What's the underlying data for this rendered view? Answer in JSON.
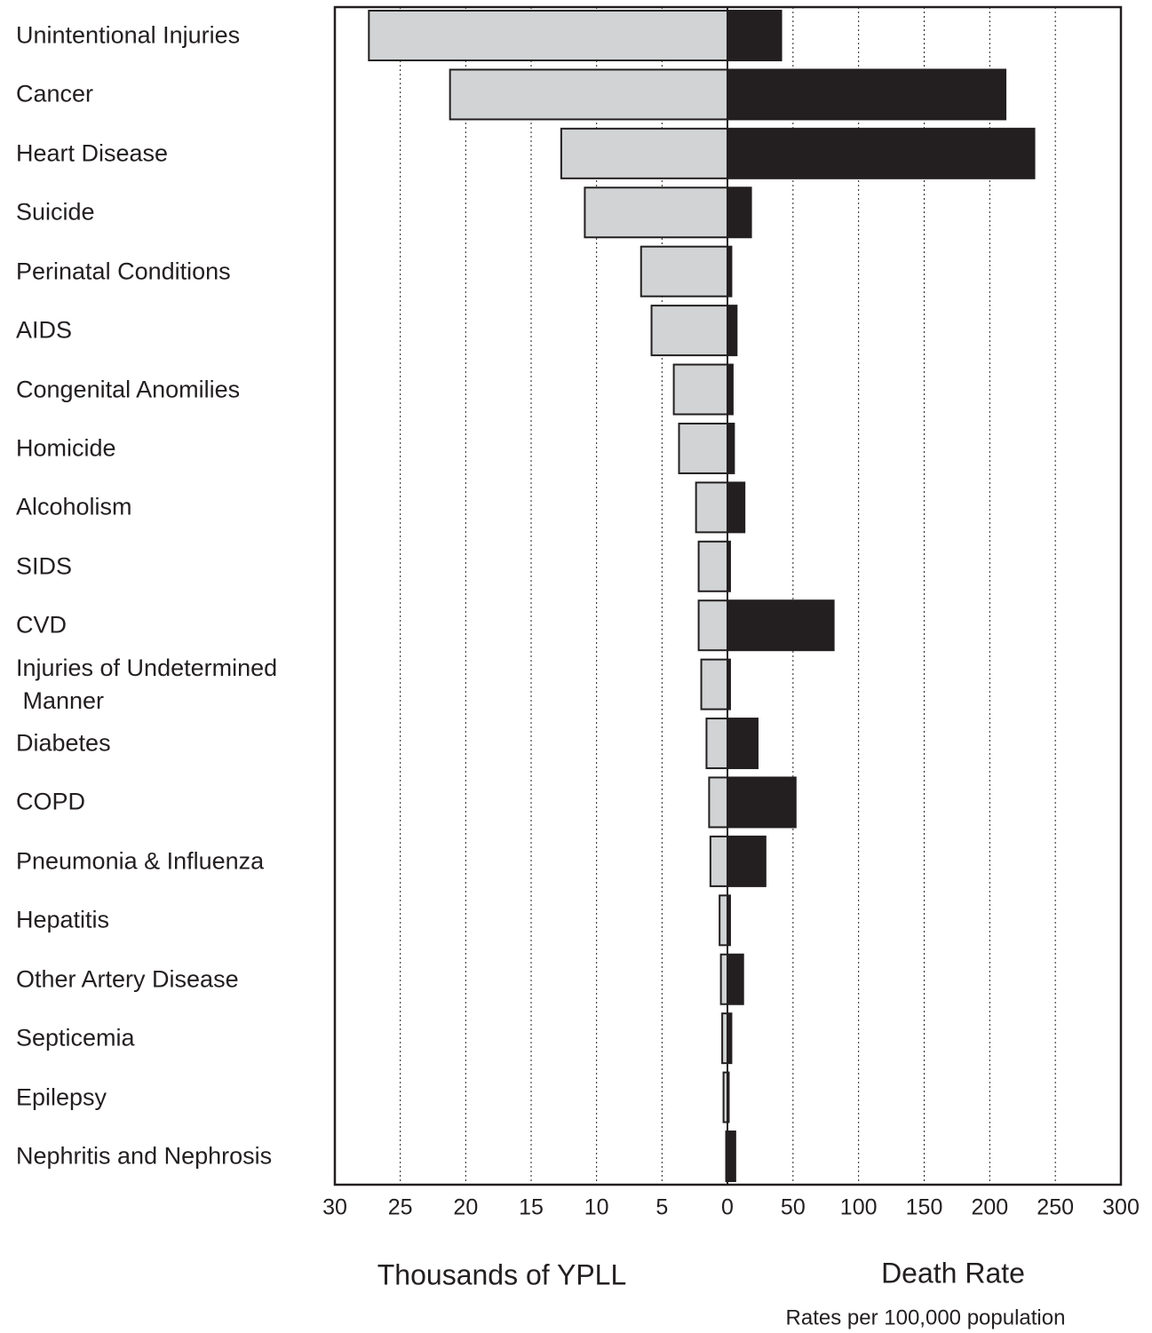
{
  "chart_data": {
    "type": "bar",
    "orientation": "horizontal",
    "grid": true,
    "grid_style": "dotted",
    "categories": [
      "Unintentional Injuries",
      "Cancer",
      "Heart Disease",
      "Suicide",
      "Perinatal Conditions",
      "AIDS",
      "Congenital Anomilies",
      "Homicide",
      "Alcoholism",
      "SIDS",
      "CVD",
      "Injuries of Undetermined\n Manner",
      "Diabetes",
      "COPD",
      "Pneumonia & Influenza",
      "Hepatitis",
      "Other Artery Disease",
      "Septicemia",
      "Epilepsy",
      "Nephritis and Nephrosis"
    ],
    "panels": [
      {
        "xlabel": "Thousands of YPLL",
        "xlim": [
          0,
          30
        ],
        "xticks": [
          30,
          25,
          20,
          15,
          10,
          5
        ],
        "reversed": true,
        "color": "#d1d3d4",
        "values": [
          27.4,
          21.2,
          12.7,
          10.9,
          6.6,
          5.8,
          4.1,
          3.7,
          2.4,
          2.2,
          2.2,
          2.0,
          1.6,
          1.4,
          1.3,
          0.6,
          0.5,
          0.4,
          0.3,
          0.1
        ]
      },
      {
        "xlabel": "Death Rate",
        "note": "Rates per 100,000 population",
        "xlim": [
          0,
          300
        ],
        "xticks": [
          0,
          50,
          100,
          150,
          200,
          250,
          300
        ],
        "reversed": false,
        "color": "#231f20",
        "values": [
          41,
          212,
          234,
          18,
          3,
          7,
          4,
          5,
          13,
          2,
          81,
          2,
          23,
          52,
          29,
          2,
          12,
          3,
          1,
          6
        ]
      }
    ]
  }
}
